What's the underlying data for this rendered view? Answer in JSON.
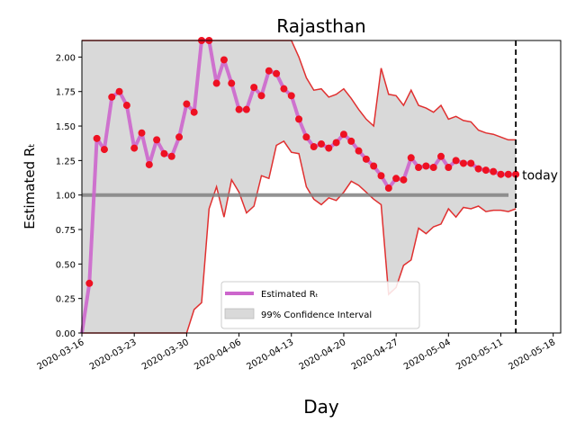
{
  "chart_data": {
    "type": "line",
    "title": "Rajasthan",
    "xlabel": "Day",
    "ylabel": "Estimated Rₜ",
    "ylim": [
      0,
      2.12
    ],
    "xlim": [
      "2020-03-16",
      "2020-05-19"
    ],
    "grid": false,
    "legend_position": "lower-center",
    "yticks": [
      "0.00",
      "0.25",
      "0.50",
      "0.75",
      "1.00",
      "1.25",
      "1.50",
      "1.75",
      "2.00"
    ],
    "xticks": [
      "2020-03-16",
      "2020-03-23",
      "2020-03-30",
      "2020-04-06",
      "2020-04-13",
      "2020-04-20",
      "2020-04-27",
      "2020-05-04",
      "2020-05-11",
      "2020-05-18"
    ],
    "reference_line": {
      "y": 1.0,
      "color": "#808080"
    },
    "today_marker": {
      "date": "2020-05-13",
      "label": "today"
    },
    "legend": [
      {
        "label": "Estimated Rₜ",
        "color": "#cc66cc",
        "kind": "line"
      },
      {
        "label": "99% Confidence Interval",
        "color": "#d9d9d9",
        "kind": "patch"
      }
    ],
    "colors": {
      "mean_line": "#cc66cc",
      "points": "#ee1122",
      "band_fill": "#d9d9d9",
      "band_edge": "#e03030",
      "today_line": "#000000"
    },
    "series": [
      {
        "name": "Estimated Rₜ",
        "x": [
          "2020-03-16",
          "2020-03-17",
          "2020-03-18",
          "2020-03-19",
          "2020-03-20",
          "2020-03-21",
          "2020-03-22",
          "2020-03-23",
          "2020-03-24",
          "2020-03-25",
          "2020-03-26",
          "2020-03-27",
          "2020-03-28",
          "2020-03-29",
          "2020-03-30",
          "2020-03-31",
          "2020-04-01",
          "2020-04-02",
          "2020-04-03",
          "2020-04-04",
          "2020-04-05",
          "2020-04-06",
          "2020-04-07",
          "2020-04-08",
          "2020-04-09",
          "2020-04-10",
          "2020-04-11",
          "2020-04-12",
          "2020-04-13",
          "2020-04-14",
          "2020-04-15",
          "2020-04-16",
          "2020-04-17",
          "2020-04-18",
          "2020-04-19",
          "2020-04-20",
          "2020-04-21",
          "2020-04-22",
          "2020-04-23",
          "2020-04-24",
          "2020-04-25",
          "2020-04-26",
          "2020-04-27",
          "2020-04-28",
          "2020-04-29",
          "2020-04-30",
          "2020-05-01",
          "2020-05-02",
          "2020-05-03",
          "2020-05-04",
          "2020-05-05",
          "2020-05-06",
          "2020-05-07",
          "2020-05-08",
          "2020-05-09",
          "2020-05-10",
          "2020-05-11",
          "2020-05-12",
          "2020-05-13"
        ],
        "y": [
          0.0,
          0.36,
          1.41,
          1.33,
          1.71,
          1.75,
          1.65,
          1.34,
          1.45,
          1.22,
          1.4,
          1.3,
          1.28,
          1.42,
          1.66,
          1.6,
          2.12,
          2.12,
          1.81,
          1.98,
          1.81,
          1.62,
          1.62,
          1.78,
          1.72,
          1.9,
          1.88,
          1.77,
          1.72,
          1.55,
          1.42,
          1.35,
          1.37,
          1.34,
          1.38,
          1.44,
          1.39,
          1.32,
          1.26,
          1.21,
          1.14,
          1.05,
          1.12,
          1.11,
          1.27,
          1.2,
          1.21,
          1.2,
          1.28,
          1.2,
          1.25,
          1.23,
          1.23,
          1.19,
          1.18,
          1.17,
          1.15,
          1.15,
          1.15
        ]
      },
      {
        "name": "99% Confidence Interval (upper)",
        "x": [
          "2020-03-16",
          "2020-03-17",
          "2020-03-18",
          "2020-04-01",
          "2020-04-02",
          "2020-04-13",
          "2020-04-14",
          "2020-04-15",
          "2020-04-16",
          "2020-04-17",
          "2020-04-18",
          "2020-04-19",
          "2020-04-20",
          "2020-04-21",
          "2020-04-22",
          "2020-04-23",
          "2020-04-24",
          "2020-04-25",
          "2020-04-26",
          "2020-04-27",
          "2020-04-28",
          "2020-04-29",
          "2020-04-30",
          "2020-05-01",
          "2020-05-02",
          "2020-05-03",
          "2020-05-04",
          "2020-05-05",
          "2020-05-06",
          "2020-05-07",
          "2020-05-08",
          "2020-05-09",
          "2020-05-10",
          "2020-05-11",
          "2020-05-12",
          "2020-05-13"
        ],
        "y": [
          2.12,
          2.12,
          2.12,
          2.12,
          2.12,
          2.12,
          2.0,
          1.85,
          1.76,
          1.77,
          1.71,
          1.73,
          1.77,
          1.7,
          1.62,
          1.55,
          1.5,
          1.92,
          1.73,
          1.72,
          1.65,
          1.76,
          1.65,
          1.63,
          1.6,
          1.65,
          1.55,
          1.57,
          1.54,
          1.53,
          1.47,
          1.45,
          1.44,
          1.42,
          1.4,
          1.4
        ]
      },
      {
        "name": "99% Confidence Interval (lower)",
        "x": [
          "2020-03-16",
          "2020-03-30",
          "2020-03-31",
          "2020-04-01",
          "2020-04-02",
          "2020-04-03",
          "2020-04-04",
          "2020-04-05",
          "2020-04-06",
          "2020-04-07",
          "2020-04-08",
          "2020-04-09",
          "2020-04-10",
          "2020-04-11",
          "2020-04-12",
          "2020-04-13",
          "2020-04-14",
          "2020-04-15",
          "2020-04-16",
          "2020-04-17",
          "2020-04-18",
          "2020-04-19",
          "2020-04-20",
          "2020-04-21",
          "2020-04-22",
          "2020-04-23",
          "2020-04-24",
          "2020-04-25",
          "2020-04-26",
          "2020-04-27",
          "2020-04-28",
          "2020-04-29",
          "2020-04-30",
          "2020-05-01",
          "2020-05-02",
          "2020-05-03",
          "2020-05-04",
          "2020-05-05",
          "2020-05-06",
          "2020-05-07",
          "2020-05-08",
          "2020-05-09",
          "2020-05-10",
          "2020-05-11",
          "2020-05-12",
          "2020-05-13"
        ],
        "y": [
          0.0,
          0.0,
          0.17,
          0.22,
          0.9,
          1.06,
          0.84,
          1.11,
          1.02,
          0.87,
          0.92,
          1.14,
          1.12,
          1.36,
          1.39,
          1.31,
          1.3,
          1.06,
          0.97,
          0.93,
          0.98,
          0.96,
          1.02,
          1.1,
          1.07,
          1.02,
          0.97,
          0.93,
          0.28,
          0.33,
          0.49,
          0.53,
          0.76,
          0.72,
          0.77,
          0.79,
          0.9,
          0.84,
          0.91,
          0.9,
          0.92,
          0.88,
          0.89,
          0.89,
          0.88,
          0.9
        ]
      }
    ]
  }
}
